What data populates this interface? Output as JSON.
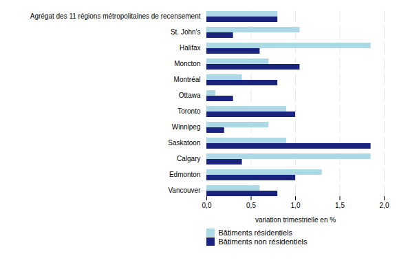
{
  "chart_data": {
    "type": "bar",
    "orientation": "horizontal",
    "categories": [
      "Agrégat des 11 régions métropolitaines de recensement",
      "St. John's",
      "Halifax",
      "Moncton",
      "Montréal",
      "Ottawa",
      "Toronto",
      "Winnipeg",
      "Saskatoon",
      "Calgary",
      "Edmonton",
      "Vancouver"
    ],
    "series": [
      {
        "name": "Bâtiments résidentiels",
        "color": "#add8e6",
        "values": [
          0.8,
          1.05,
          1.85,
          0.7,
          0.4,
          0.1,
          0.9,
          0.7,
          0.9,
          1.85,
          1.3,
          0.6
        ]
      },
      {
        "name": "Bâtiments non résidentiels",
        "color": "#1a237e",
        "values": [
          0.8,
          0.3,
          0.6,
          1.05,
          0.8,
          0.3,
          1.0,
          0.2,
          1.85,
          0.4,
          1.0,
          0.8
        ]
      }
    ],
    "xlabel": "variation trimestrielle en %",
    "xlim": [
      0,
      2.0
    ],
    "xticks": [
      {
        "value": 0.0,
        "label": "0,0"
      },
      {
        "value": 0.5,
        "label": "0,5"
      },
      {
        "value": 1.0,
        "label": "1,0"
      },
      {
        "value": 1.5,
        "label": "1,5"
      },
      {
        "value": 2.0,
        "label": "2,0"
      }
    ],
    "grid": true,
    "legend": "bottom"
  }
}
